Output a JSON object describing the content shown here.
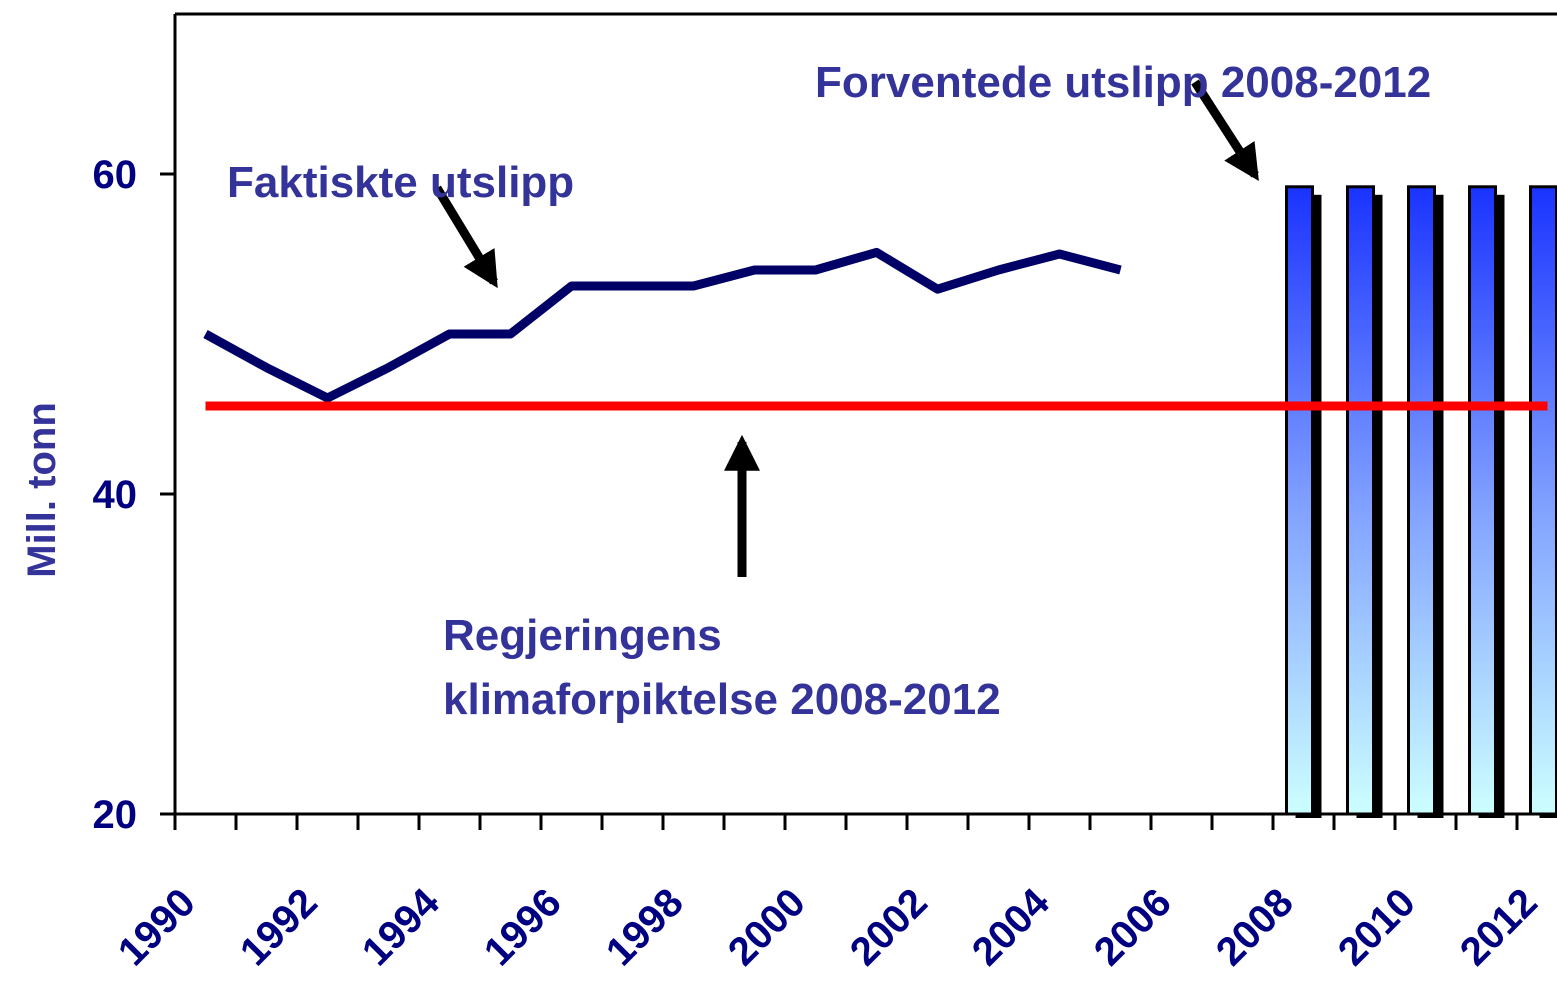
{
  "chart_data": {
    "type": "line",
    "y_label": "Mill. tonn",
    "categories": [
      "1990",
      null,
      "1992",
      null,
      "1994",
      null,
      "1996",
      null,
      "1998",
      null,
      "2000",
      null,
      "2002",
      null,
      "2004",
      null,
      "2006",
      null,
      "2008",
      null,
      "2010",
      null,
      "2012"
    ],
    "series": [
      {
        "type": "line",
        "color": "#000066",
        "values": [
          50,
          47.9,
          46,
          47.9,
          50,
          50,
          53,
          53,
          53,
          54,
          54,
          55.1,
          52.8,
          54,
          55,
          54,
          null,
          null,
          null,
          null,
          null,
          null,
          null
        ]
      },
      {
        "type": "line",
        "color": "#ff0000",
        "values": [
          45.5,
          45.5,
          45.5,
          45.5,
          45.5,
          45.5,
          45.5,
          45.5,
          45.5,
          45.5,
          45.5,
          45.5,
          45.5,
          45.5,
          45.5,
          45.5,
          45.5,
          45.5,
          45.5,
          45.5,
          45.5,
          45.5,
          45.5
        ]
      },
      {
        "type": "bar",
        "color": "#1a33ff",
        "values": [
          null,
          null,
          null,
          null,
          null,
          null,
          null,
          null,
          null,
          null,
          null,
          null,
          null,
          null,
          null,
          null,
          null,
          null,
          59.2,
          59.2,
          59.2,
          59.2,
          59.2
        ]
      }
    ],
    "annotations": [
      "Faktiskte utslipp",
      "Forventede utslipp 2008-2012",
      "Regjeringens",
      "klimaforpiktelse 2008-2012"
    ],
    "ylim": [
      20,
      70
    ],
    "yticks": [
      20,
      40,
      60
    ]
  }
}
